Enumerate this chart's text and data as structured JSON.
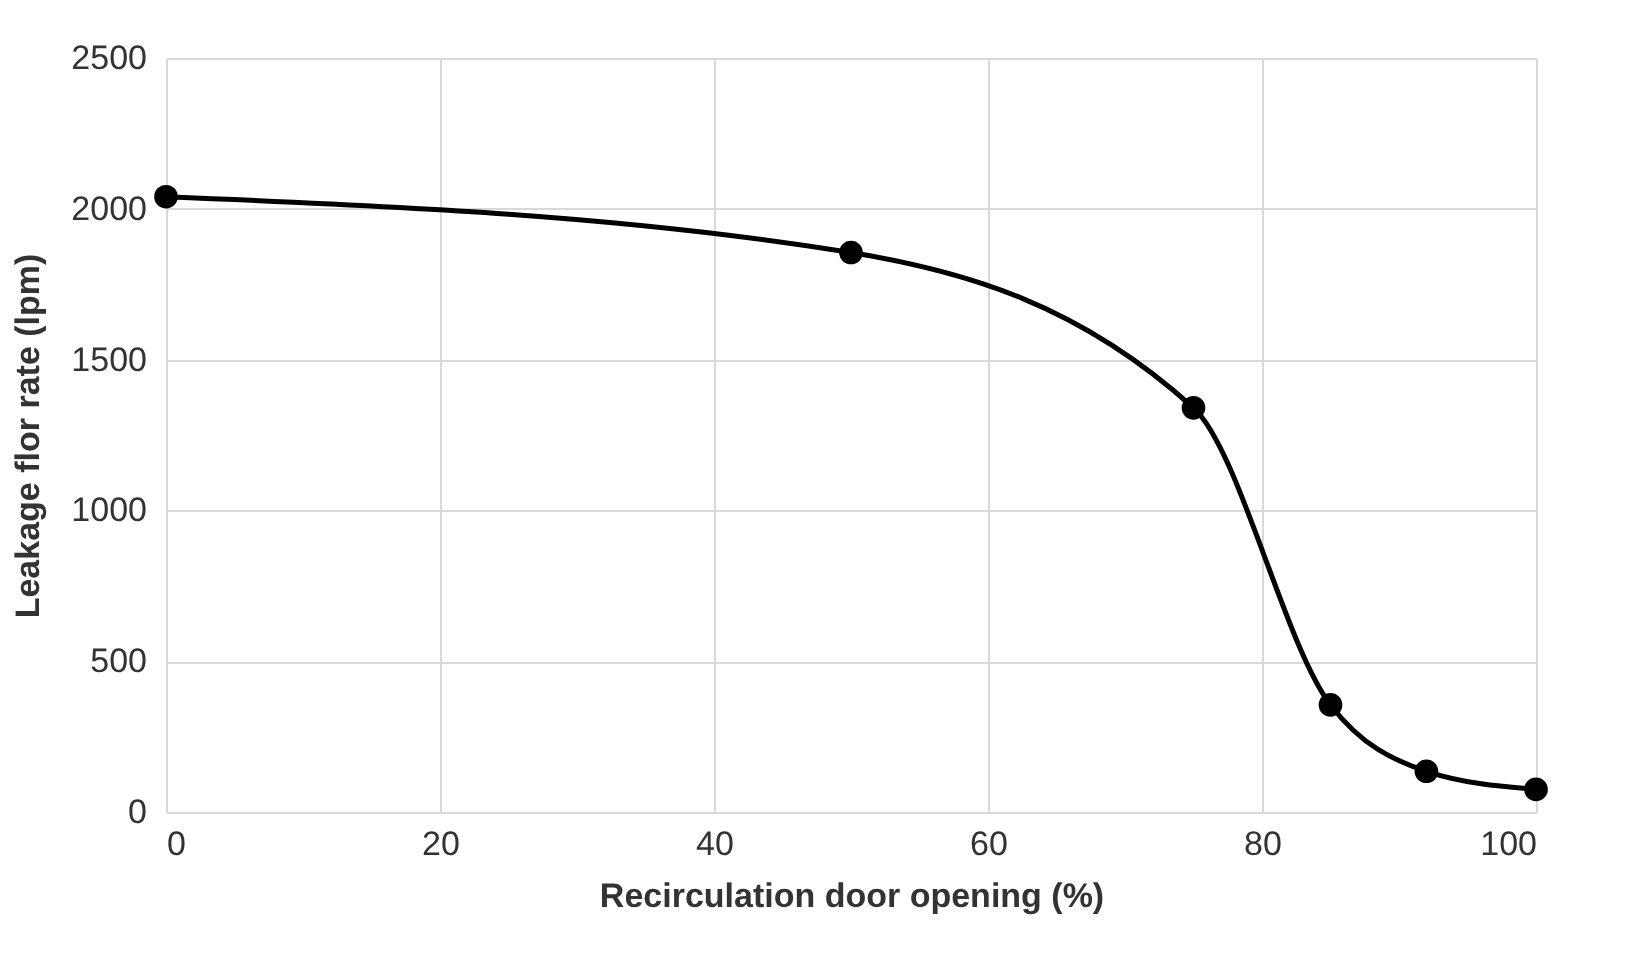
{
  "chart_data": {
    "type": "line",
    "xlabel": "Recirculation door opening (%)",
    "ylabel": "Leakage flor rate (lpm)",
    "x": [
      0,
      50,
      75,
      85,
      92,
      100
    ],
    "series": [
      {
        "color": "#000000",
        "values": [
          2040,
          1855,
          1340,
          355,
          135,
          75
        ]
      }
    ],
    "xlim": [
      0,
      100
    ],
    "xticks": [
      0,
      20,
      40,
      60,
      80,
      100
    ],
    "ylim": [
      0,
      2500
    ],
    "yticks": [
      0,
      500,
      1000,
      1500,
      2000,
      2500
    ],
    "grid": true,
    "marker": "circle",
    "line_style": "solid"
  }
}
